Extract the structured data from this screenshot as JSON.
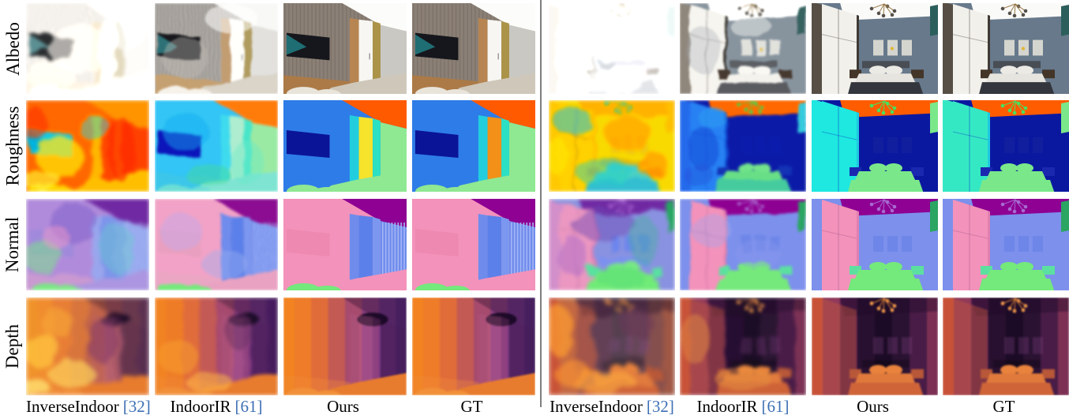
{
  "figure": {
    "row_labels": [
      "Albedo",
      "Roughness",
      "Normal",
      "Depth"
    ],
    "methods": [
      {
        "label": "InverseIndoor",
        "cite": "[32]"
      },
      {
        "label": "IndoorIR",
        "cite": "[61]"
      },
      {
        "label": "Ours",
        "cite": ""
      },
      {
        "label": "GT",
        "cite": ""
      }
    ],
    "cite_color": "#3d6fb4",
    "divider_color": "#7e7e7e",
    "background": "#ffffff",
    "text_color": "#000000"
  }
}
